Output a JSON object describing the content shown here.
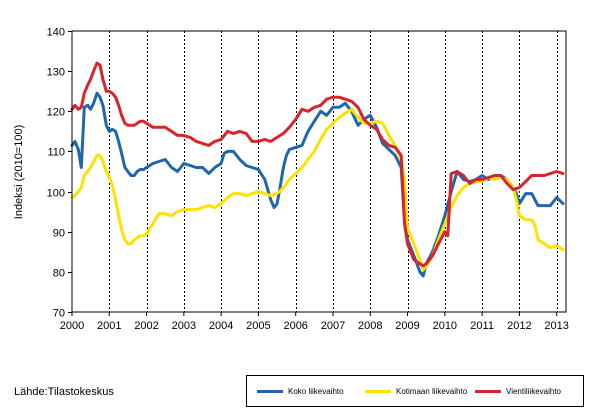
{
  "colors": {
    "koko": "#1f66ad",
    "kotimaan": "#ffe100",
    "vienti": "#d6252b",
    "grid": "#000000"
  },
  "source": "Lähde:Tilastokeskus",
  "chart_data": {
    "type": "line",
    "title": "",
    "xlabel": "",
    "ylabel": "Indeksi (2010=100)",
    "ylim": [
      70,
      140
    ],
    "xlim": [
      2000,
      2013.25
    ],
    "yticks": [
      70,
      80,
      90,
      100,
      110,
      120,
      130,
      140
    ],
    "xtick_labels": [
      "2000",
      "2001",
      "2002",
      "2003",
      "2004",
      "2005",
      "2006",
      "2007",
      "2008",
      "2009",
      "2010",
      "2011",
      "2012",
      "2013"
    ],
    "grid": "vertical dashed at year boundaries",
    "legend_position": "bottom-right",
    "series": [
      {
        "key": "koko",
        "name": "Koko liikevaihto",
        "x": [
          2000,
          2000.08,
          2000.17,
          2000.25,
          2000.33,
          2000.42,
          2000.5,
          2000.58,
          2000.67,
          2000.75,
          2000.83,
          2000.92,
          2001,
          2001.08,
          2001.17,
          2001.25,
          2001.33,
          2001.42,
          2001.5,
          2001.58,
          2001.67,
          2001.75,
          2001.83,
          2001.92,
          2002,
          2002.17,
          2002.33,
          2002.5,
          2002.67,
          2002.83,
          2003,
          2003.17,
          2003.33,
          2003.5,
          2003.67,
          2003.83,
          2004,
          2004.08,
          2004.17,
          2004.33,
          2004.5,
          2004.67,
          2004.83,
          2005,
          2005.17,
          2005.33,
          2005.42,
          2005.5,
          2005.58,
          2005.67,
          2005.75,
          2005.83,
          2006,
          2006.17,
          2006.33,
          2006.5,
          2006.67,
          2006.83,
          2007,
          2007.17,
          2007.33,
          2007.5,
          2007.67,
          2007.83,
          2008,
          2008.17,
          2008.33,
          2008.5,
          2008.67,
          2008.83,
          2008.92,
          2009,
          2009.17,
          2009.33,
          2009.42,
          2009.5,
          2009.67,
          2009.83,
          2010,
          2010.17,
          2010.33,
          2010.5,
          2010.67,
          2010.83,
          2011,
          2011.17,
          2011.33,
          2011.5,
          2011.67,
          2011.83,
          2011.92,
          2012,
          2012.17,
          2012.33,
          2012.5,
          2012.67,
          2012.83,
          2013,
          2013.17
        ],
        "values": [
          111.5,
          112.5,
          110.5,
          106,
          121,
          121.5,
          120.5,
          122,
          124.5,
          123.5,
          121.5,
          116.5,
          115,
          115.5,
          115,
          112.5,
          109.5,
          106,
          105,
          104,
          104,
          105,
          105.5,
          105.5,
          106,
          107,
          107.5,
          108,
          106,
          105,
          107,
          106.5,
          106,
          106,
          104.5,
          106,
          107,
          109.5,
          110,
          110,
          108,
          106.5,
          106,
          105.5,
          103,
          98,
          96,
          97,
          101,
          106,
          109,
          110.5,
          111,
          111.5,
          115,
          117.5,
          120,
          119,
          121,
          121,
          122,
          120,
          116.5,
          118,
          119,
          116,
          112,
          110.5,
          109,
          106,
          92,
          88,
          84,
          80,
          79,
          82,
          85,
          89,
          94,
          100,
          105,
          103,
          102.5,
          103,
          104,
          103,
          104,
          104,
          103,
          101,
          99.5,
          97,
          99.5,
          99.5,
          96.5,
          96.5,
          96.5,
          98.5,
          97
        ]
      },
      {
        "key": "kotimaan",
        "name": "Kotimaan liikevaihto",
        "x": [
          2000,
          2000.08,
          2000.17,
          2000.25,
          2000.33,
          2000.42,
          2000.5,
          2000.58,
          2000.67,
          2000.75,
          2000.83,
          2000.92,
          2001,
          2001.08,
          2001.17,
          2001.25,
          2001.33,
          2001.42,
          2001.5,
          2001.58,
          2001.67,
          2001.75,
          2001.83,
          2001.92,
          2002,
          2002.17,
          2002.33,
          2002.5,
          2002.67,
          2002.83,
          2003,
          2003.17,
          2003.33,
          2003.5,
          2003.67,
          2003.83,
          2004,
          2004.17,
          2004.33,
          2004.5,
          2004.67,
          2004.83,
          2005,
          2005.17,
          2005.33,
          2005.5,
          2005.67,
          2005.83,
          2006,
          2006.17,
          2006.33,
          2006.5,
          2006.67,
          2006.83,
          2007,
          2007.17,
          2007.33,
          2007.5,
          2007.67,
          2007.83,
          2008,
          2008.17,
          2008.33,
          2008.5,
          2008.67,
          2008.83,
          2008.92,
          2009,
          2009.17,
          2009.33,
          2009.42,
          2009.5,
          2009.67,
          2009.83,
          2010,
          2010.17,
          2010.33,
          2010.5,
          2010.67,
          2010.83,
          2011,
          2011.17,
          2011.33,
          2011.5,
          2011.67,
          2011.83,
          2011.92,
          2012,
          2012.17,
          2012.33,
          2012.42,
          2012.5,
          2012.67,
          2012.83,
          2013,
          2013.17
        ],
        "values": [
          98.5,
          99,
          100,
          101,
          104,
          105,
          106,
          107.5,
          109,
          109,
          107.5,
          105,
          103.5,
          101.5,
          98,
          94,
          90.5,
          88,
          87,
          87,
          88,
          88.5,
          89,
          89,
          89.5,
          92,
          94.5,
          94.5,
          94,
          95,
          95.5,
          95.5,
          95.5,
          96,
          96.5,
          96,
          97,
          98.5,
          99.5,
          99.5,
          99,
          99.5,
          100,
          99.5,
          99,
          99.5,
          101,
          103,
          104.5,
          106,
          108,
          110,
          113,
          115.5,
          117,
          118.5,
          119.5,
          120.5,
          118.5,
          117,
          117,
          117.5,
          117,
          114,
          111.5,
          108,
          103,
          91,
          87,
          83,
          80.5,
          81.5,
          84,
          88,
          92,
          96,
          99,
          101,
          102,
          102.5,
          102.5,
          103.5,
          103,
          103.5,
          103,
          101,
          98,
          94,
          93,
          93,
          91.5,
          88,
          87,
          86,
          86.5,
          85.5
        ]
      },
      {
        "key": "vienti",
        "name": "Vientiliikevaihto",
        "x": [
          2000,
          2000.08,
          2000.17,
          2000.25,
          2000.33,
          2000.42,
          2000.5,
          2000.58,
          2000.67,
          2000.75,
          2000.83,
          2000.92,
          2001,
          2001.08,
          2001.17,
          2001.25,
          2001.33,
          2001.42,
          2001.5,
          2001.58,
          2001.67,
          2001.75,
          2001.83,
          2001.92,
          2002,
          2002.17,
          2002.33,
          2002.5,
          2002.67,
          2002.83,
          2003,
          2003.17,
          2003.33,
          2003.5,
          2003.67,
          2003.83,
          2004,
          2004.17,
          2004.33,
          2004.5,
          2004.67,
          2004.83,
          2005,
          2005.17,
          2005.33,
          2005.5,
          2005.67,
          2005.83,
          2006,
          2006.17,
          2006.33,
          2006.5,
          2006.67,
          2006.83,
          2007,
          2007.17,
          2007.33,
          2007.5,
          2007.67,
          2007.83,
          2008,
          2008.17,
          2008.33,
          2008.5,
          2008.67,
          2008.83,
          2008.92,
          2009,
          2009.17,
          2009.33,
          2009.42,
          2009.5,
          2009.67,
          2009.83,
          2010,
          2010.08,
          2010.17,
          2010.33,
          2010.5,
          2010.67,
          2010.83,
          2011,
          2011.17,
          2011.33,
          2011.5,
          2011.67,
          2011.83,
          2012,
          2012.17,
          2012.33,
          2012.5,
          2012.67,
          2012.83,
          2013,
          2013.17
        ],
        "values": [
          120.5,
          121.5,
          120.5,
          121,
          124.5,
          126.5,
          128,
          130,
          132,
          131.5,
          128,
          125,
          125,
          124.5,
          123.5,
          121.5,
          119,
          117,
          116.5,
          116.5,
          116.5,
          117,
          117.5,
          117.5,
          117,
          116,
          116,
          116,
          115,
          114,
          114,
          113.5,
          112.5,
          112,
          111.5,
          112.5,
          113,
          115,
          114.5,
          115,
          114.5,
          112.5,
          112.5,
          113,
          112.5,
          113.5,
          114.5,
          116,
          118,
          120.5,
          120,
          121,
          121.5,
          123,
          123.5,
          123.5,
          123,
          122.5,
          121,
          118,
          116.5,
          115.5,
          113,
          111.5,
          111,
          109,
          92,
          87,
          83,
          82,
          81.5,
          82,
          84,
          87,
          90,
          89,
          104.5,
          105,
          104,
          102,
          103,
          103,
          103.5,
          104,
          104,
          102,
          100.5,
          101,
          102.5,
          104,
          104,
          104,
          104.5,
          105,
          104.5
        ]
      }
    ]
  }
}
